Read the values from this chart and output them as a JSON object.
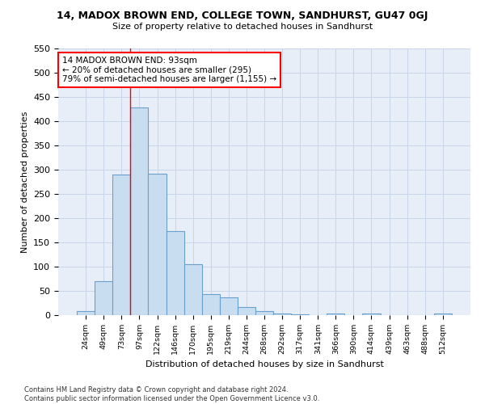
{
  "title": "14, MADOX BROWN END, COLLEGE TOWN, SANDHURST, GU47 0GJ",
  "subtitle": "Size of property relative to detached houses in Sandhurst",
  "xlabel": "Distribution of detached houses by size in Sandhurst",
  "ylabel": "Number of detached properties",
  "bar_values": [
    8,
    70,
    290,
    428,
    292,
    174,
    105,
    44,
    37,
    16,
    8,
    4,
    2,
    0,
    4,
    0,
    4,
    0,
    0,
    0,
    4
  ],
  "bar_labels": [
    "24sqm",
    "49sqm",
    "73sqm",
    "97sqm",
    "122sqm",
    "146sqm",
    "170sqm",
    "195sqm",
    "219sqm",
    "244sqm",
    "268sqm",
    "292sqm",
    "317sqm",
    "341sqm",
    "366sqm",
    "390sqm",
    "414sqm",
    "439sqm",
    "463sqm",
    "488sqm",
    "512sqm"
  ],
  "bar_color": "#c9ddf0",
  "bar_edge_color": "#6aa0cc",
  "grid_color": "#c8d4e8",
  "background_color": "#e8eef8",
  "ylim": [
    0,
    550
  ],
  "yticks": [
    0,
    50,
    100,
    150,
    200,
    250,
    300,
    350,
    400,
    450,
    500,
    550
  ],
  "property_bin_index": 3,
  "annotation_line1": "14 MADOX BROWN END: 93sqm",
  "annotation_line2": "← 20% of detached houses are smaller (295)",
  "annotation_line3": "79% of semi-detached houses are larger (1,155) →",
  "footer1": "Contains HM Land Registry data © Crown copyright and database right 2024.",
  "footer2": "Contains public sector information licensed under the Open Government Licence v3.0."
}
